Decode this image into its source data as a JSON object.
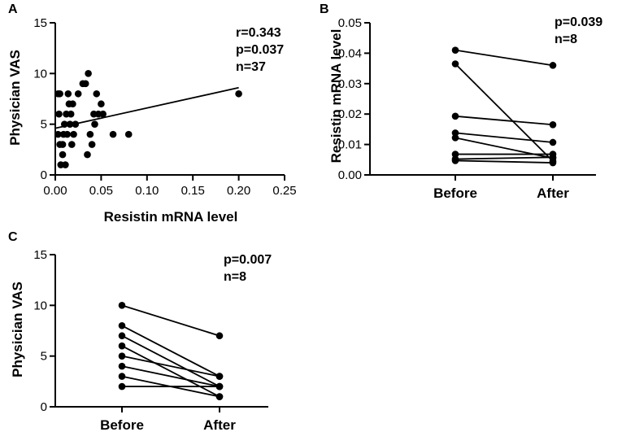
{
  "chart_data": [
    {
      "panel": "A",
      "type": "scatter",
      "xlabel": "Resistin mRNA level",
      "ylabel": "Physician VAS",
      "xlim": [
        0,
        0.25
      ],
      "ylim": [
        0,
        15
      ],
      "xticks": [
        "0.00",
        "0.05",
        "0.10",
        "0.15",
        "0.20",
        "0.25"
      ],
      "xtick_values": [
        0,
        0.05,
        0.1,
        0.15,
        0.2,
        0.25
      ],
      "yticks": [
        "0",
        "5",
        "10",
        "15"
      ],
      "ytick_values": [
        0,
        5,
        10,
        15
      ],
      "annotations": [
        "r=0.343",
        "p=0.037",
        "n=37"
      ],
      "regression_line": {
        "x": [
          0,
          0.2
        ],
        "y": [
          4.6,
          8.6
        ]
      },
      "points": [
        {
          "x": 0.003,
          "y": 8
        },
        {
          "x": 0.005,
          "y": 8
        },
        {
          "x": 0.004,
          "y": 6
        },
        {
          "x": 0.003,
          "y": 4
        },
        {
          "x": 0.006,
          "y": 1
        },
        {
          "x": 0.005,
          "y": 3
        },
        {
          "x": 0.008,
          "y": 2
        },
        {
          "x": 0.009,
          "y": 4
        },
        {
          "x": 0.008,
          "y": 3
        },
        {
          "x": 0.01,
          "y": 5
        },
        {
          "x": 0.011,
          "y": 1
        },
        {
          "x": 0.012,
          "y": 6
        },
        {
          "x": 0.013,
          "y": 4
        },
        {
          "x": 0.014,
          "y": 8
        },
        {
          "x": 0.015,
          "y": 7
        },
        {
          "x": 0.016,
          "y": 5
        },
        {
          "x": 0.017,
          "y": 6
        },
        {
          "x": 0.018,
          "y": 3
        },
        {
          "x": 0.019,
          "y": 7
        },
        {
          "x": 0.02,
          "y": 4
        },
        {
          "x": 0.025,
          "y": 8
        },
        {
          "x": 0.03,
          "y": 9
        },
        {
          "x": 0.033,
          "y": 9
        },
        {
          "x": 0.035,
          "y": 2
        },
        {
          "x": 0.036,
          "y": 10
        },
        {
          "x": 0.038,
          "y": 4
        },
        {
          "x": 0.04,
          "y": 3
        },
        {
          "x": 0.042,
          "y": 6
        },
        {
          "x": 0.043,
          "y": 5
        },
        {
          "x": 0.045,
          "y": 8
        },
        {
          "x": 0.047,
          "y": 6
        },
        {
          "x": 0.05,
          "y": 7
        },
        {
          "x": 0.052,
          "y": 6
        },
        {
          "x": 0.022,
          "y": 5
        },
        {
          "x": 0.063,
          "y": 4
        },
        {
          "x": 0.08,
          "y": 4
        },
        {
          "x": 0.2,
          "y": 8
        }
      ]
    },
    {
      "panel": "B",
      "type": "paired-line",
      "xlabel": "",
      "ylabel": "Resistin mRNA level",
      "categories": [
        "Before",
        "After"
      ],
      "ylim": [
        0,
        0.05
      ],
      "yticks": [
        "0.00",
        "0.01",
        "0.02",
        "0.03",
        "0.04",
        "0.05"
      ],
      "ytick_values": [
        0,
        0.01,
        0.02,
        0.03,
        0.04,
        0.05
      ],
      "annotations": [
        "p=0.039",
        "n=8"
      ],
      "pairs": [
        {
          "before": 0.041,
          "after": 0.036
        },
        {
          "before": 0.0365,
          "after": 0.0045
        },
        {
          "before": 0.0193,
          "after": 0.0165
        },
        {
          "before": 0.0138,
          "after": 0.0107
        },
        {
          "before": 0.0122,
          "after": 0.0055
        },
        {
          "before": 0.0068,
          "after": 0.0068
        },
        {
          "before": 0.0052,
          "after": 0.0058
        },
        {
          "before": 0.0047,
          "after": 0.004
        }
      ]
    },
    {
      "panel": "C",
      "type": "paired-line",
      "xlabel": "",
      "ylabel": "Physician VAS",
      "categories": [
        "Before",
        "After"
      ],
      "ylim": [
        0,
        15
      ],
      "yticks": [
        "0",
        "5",
        "10",
        "15"
      ],
      "ytick_values": [
        0,
        5,
        10,
        15
      ],
      "annotations": [
        "p=0.007",
        "n=8"
      ],
      "pairs": [
        {
          "before": 10,
          "after": 7
        },
        {
          "before": 8,
          "after": 3
        },
        {
          "before": 7,
          "after": 2
        },
        {
          "before": 6,
          "after": 1
        },
        {
          "before": 5,
          "after": 3
        },
        {
          "before": 4,
          "after": 2
        },
        {
          "before": 3,
          "after": 1
        },
        {
          "before": 2,
          "after": 2
        }
      ]
    }
  ]
}
